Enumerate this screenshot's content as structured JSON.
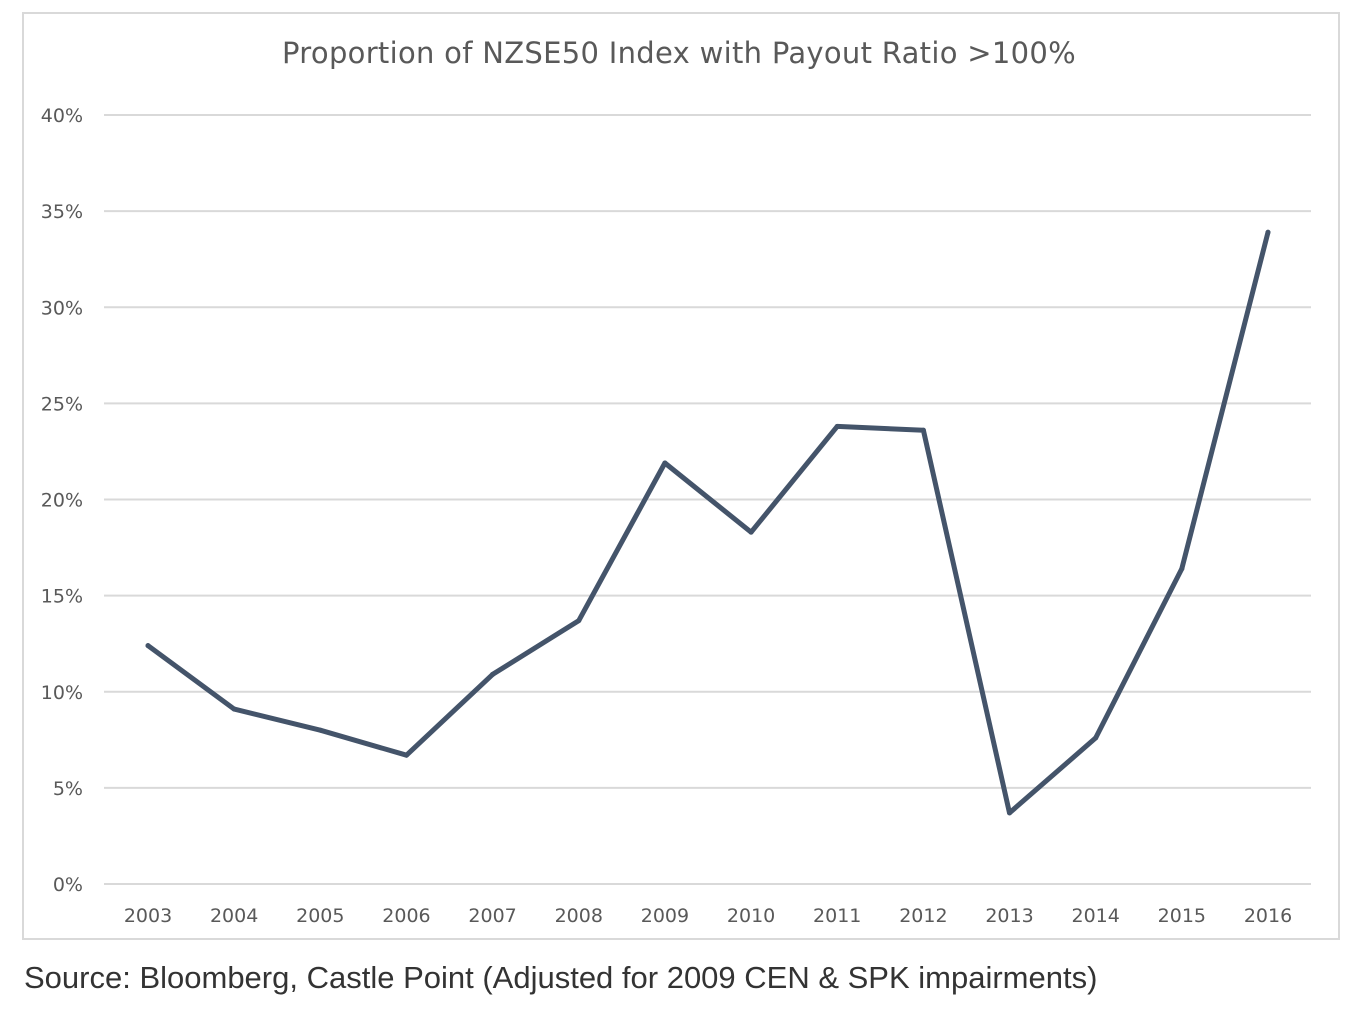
{
  "chart_data": {
    "type": "line",
    "title": "Proportion of NZSE50 Index with Payout Ratio >100%",
    "xlabel": "",
    "ylabel": "",
    "categories": [
      "2003",
      "2004",
      "2005",
      "2006",
      "2007",
      "2008",
      "2009",
      "2010",
      "2011",
      "2012",
      "2013",
      "2014",
      "2015",
      "2016"
    ],
    "series": [
      {
        "values": [
          12.4,
          9.1,
          8.0,
          6.7,
          10.9,
          13.7,
          21.9,
          18.3,
          23.8,
          23.6,
          3.7,
          7.6,
          16.4,
          33.9
        ],
        "color": "#44546a"
      }
    ],
    "ylim": [
      0,
      40
    ],
    "yticks": [
      0,
      5,
      10,
      15,
      20,
      25,
      30,
      35,
      40
    ],
    "ytick_labels": [
      "0%",
      "5%",
      "10%",
      "15%",
      "20%",
      "25%",
      "30%",
      "35%",
      "40%"
    ],
    "grid": true,
    "legend": "none",
    "gridline_color": "#d9d9d9"
  },
  "source_note": "Source: Bloomberg, Castle Point (Adjusted for 2009 CEN & SPK impairments)"
}
